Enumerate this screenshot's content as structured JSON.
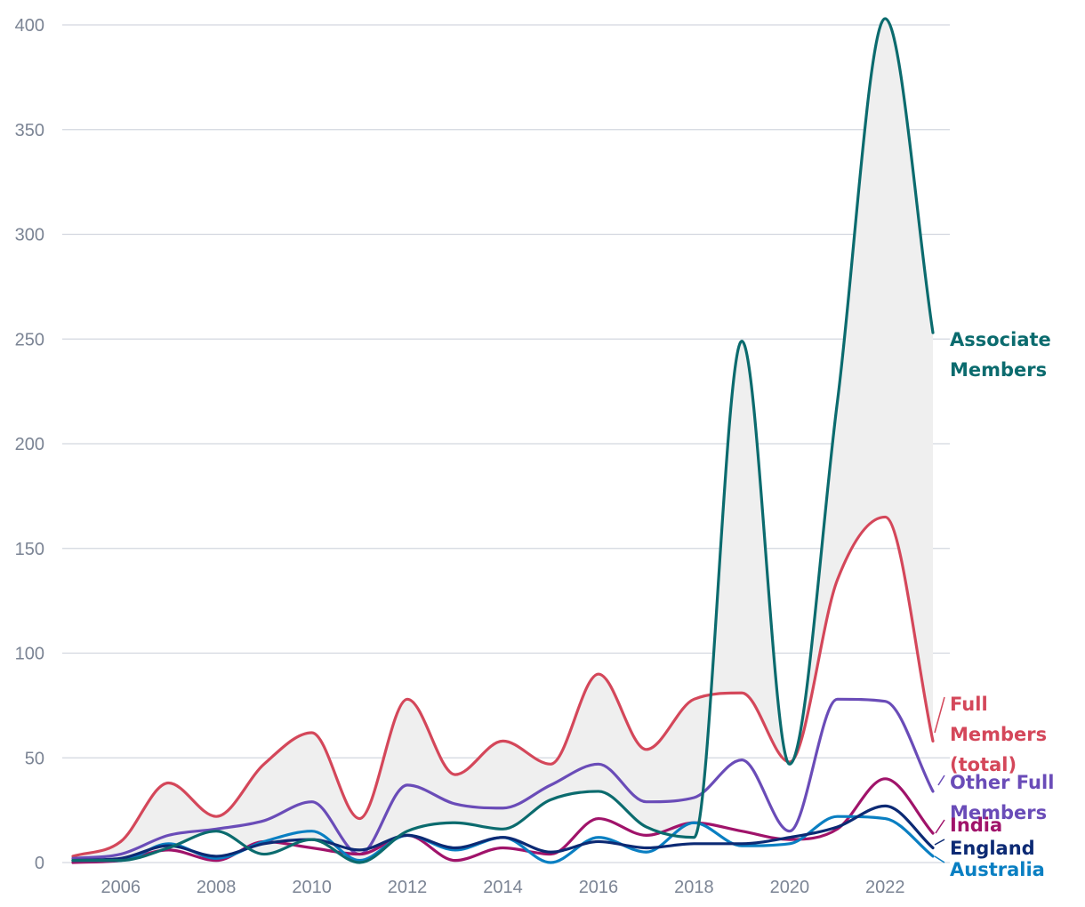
{
  "chart_data": {
    "type": "line",
    "title": "",
    "xlabel": "",
    "ylabel": "",
    "x": [
      2005,
      2006,
      2007,
      2008,
      2009,
      2010,
      2011,
      2012,
      2013,
      2014,
      2015,
      2016,
      2017,
      2018,
      2019,
      2020,
      2021,
      2022,
      2023
    ],
    "ylim": [
      0,
      400
    ],
    "xlim": [
      2005,
      2023
    ],
    "yticks": [
      0,
      50,
      100,
      150,
      200,
      250,
      300,
      350,
      400
    ],
    "xticks": [
      2006,
      2008,
      2010,
      2012,
      2014,
      2016,
      2018,
      2020,
      2022
    ],
    "shaded_range": "between Associate Members and Full Members (total)",
    "series": [
      {
        "name": "Associate Members",
        "color": "#0b6b6e",
        "label_lines": [
          "Associate",
          "Members"
        ],
        "values": [
          1,
          1,
          7,
          15,
          4,
          11,
          0,
          15,
          19,
          16,
          30,
          34,
          17,
          12,
          249,
          47,
          220,
          403,
          253
        ]
      },
      {
        "name": "Full Members (total)",
        "color": "#d4475a",
        "label_lines": [
          "Full",
          "Members",
          "(total)"
        ],
        "values": [
          3,
          10,
          38,
          22,
          47,
          62,
          21,
          78,
          42,
          58,
          47,
          90,
          54,
          78,
          81,
          48,
          135,
          165,
          58
        ]
      },
      {
        "name": "Other Full Members",
        "color": "#6a4cb8",
        "label_lines": [
          "Other Full",
          "Members"
        ],
        "values": [
          2,
          4,
          13,
          16,
          20,
          29,
          4,
          37,
          28,
          26,
          37,
          47,
          29,
          31,
          49,
          15,
          78,
          77,
          34
        ]
      },
      {
        "name": "India",
        "color": "#a0136a",
        "label_lines": [
          "India"
        ],
        "values": [
          0,
          1,
          6,
          1,
          10,
          7,
          4,
          13,
          1,
          7,
          4,
          21,
          13,
          19,
          15,
          11,
          16,
          40,
          14
        ]
      },
      {
        "name": "England",
        "color": "#0c2a74",
        "label_lines": [
          "England"
        ],
        "values": [
          1,
          2,
          8,
          3,
          9,
          11,
          6,
          13,
          7,
          12,
          5,
          10,
          7,
          9,
          9,
          12,
          17,
          27,
          7
        ]
      },
      {
        "name": "Australia",
        "color": "#0a7fc2",
        "label_lines": [
          "Australia"
        ],
        "values": [
          1,
          1,
          9,
          2,
          10,
          15,
          1,
          13,
          6,
          12,
          0,
          12,
          5,
          19,
          8,
          9,
          22,
          21,
          3
        ]
      }
    ]
  }
}
